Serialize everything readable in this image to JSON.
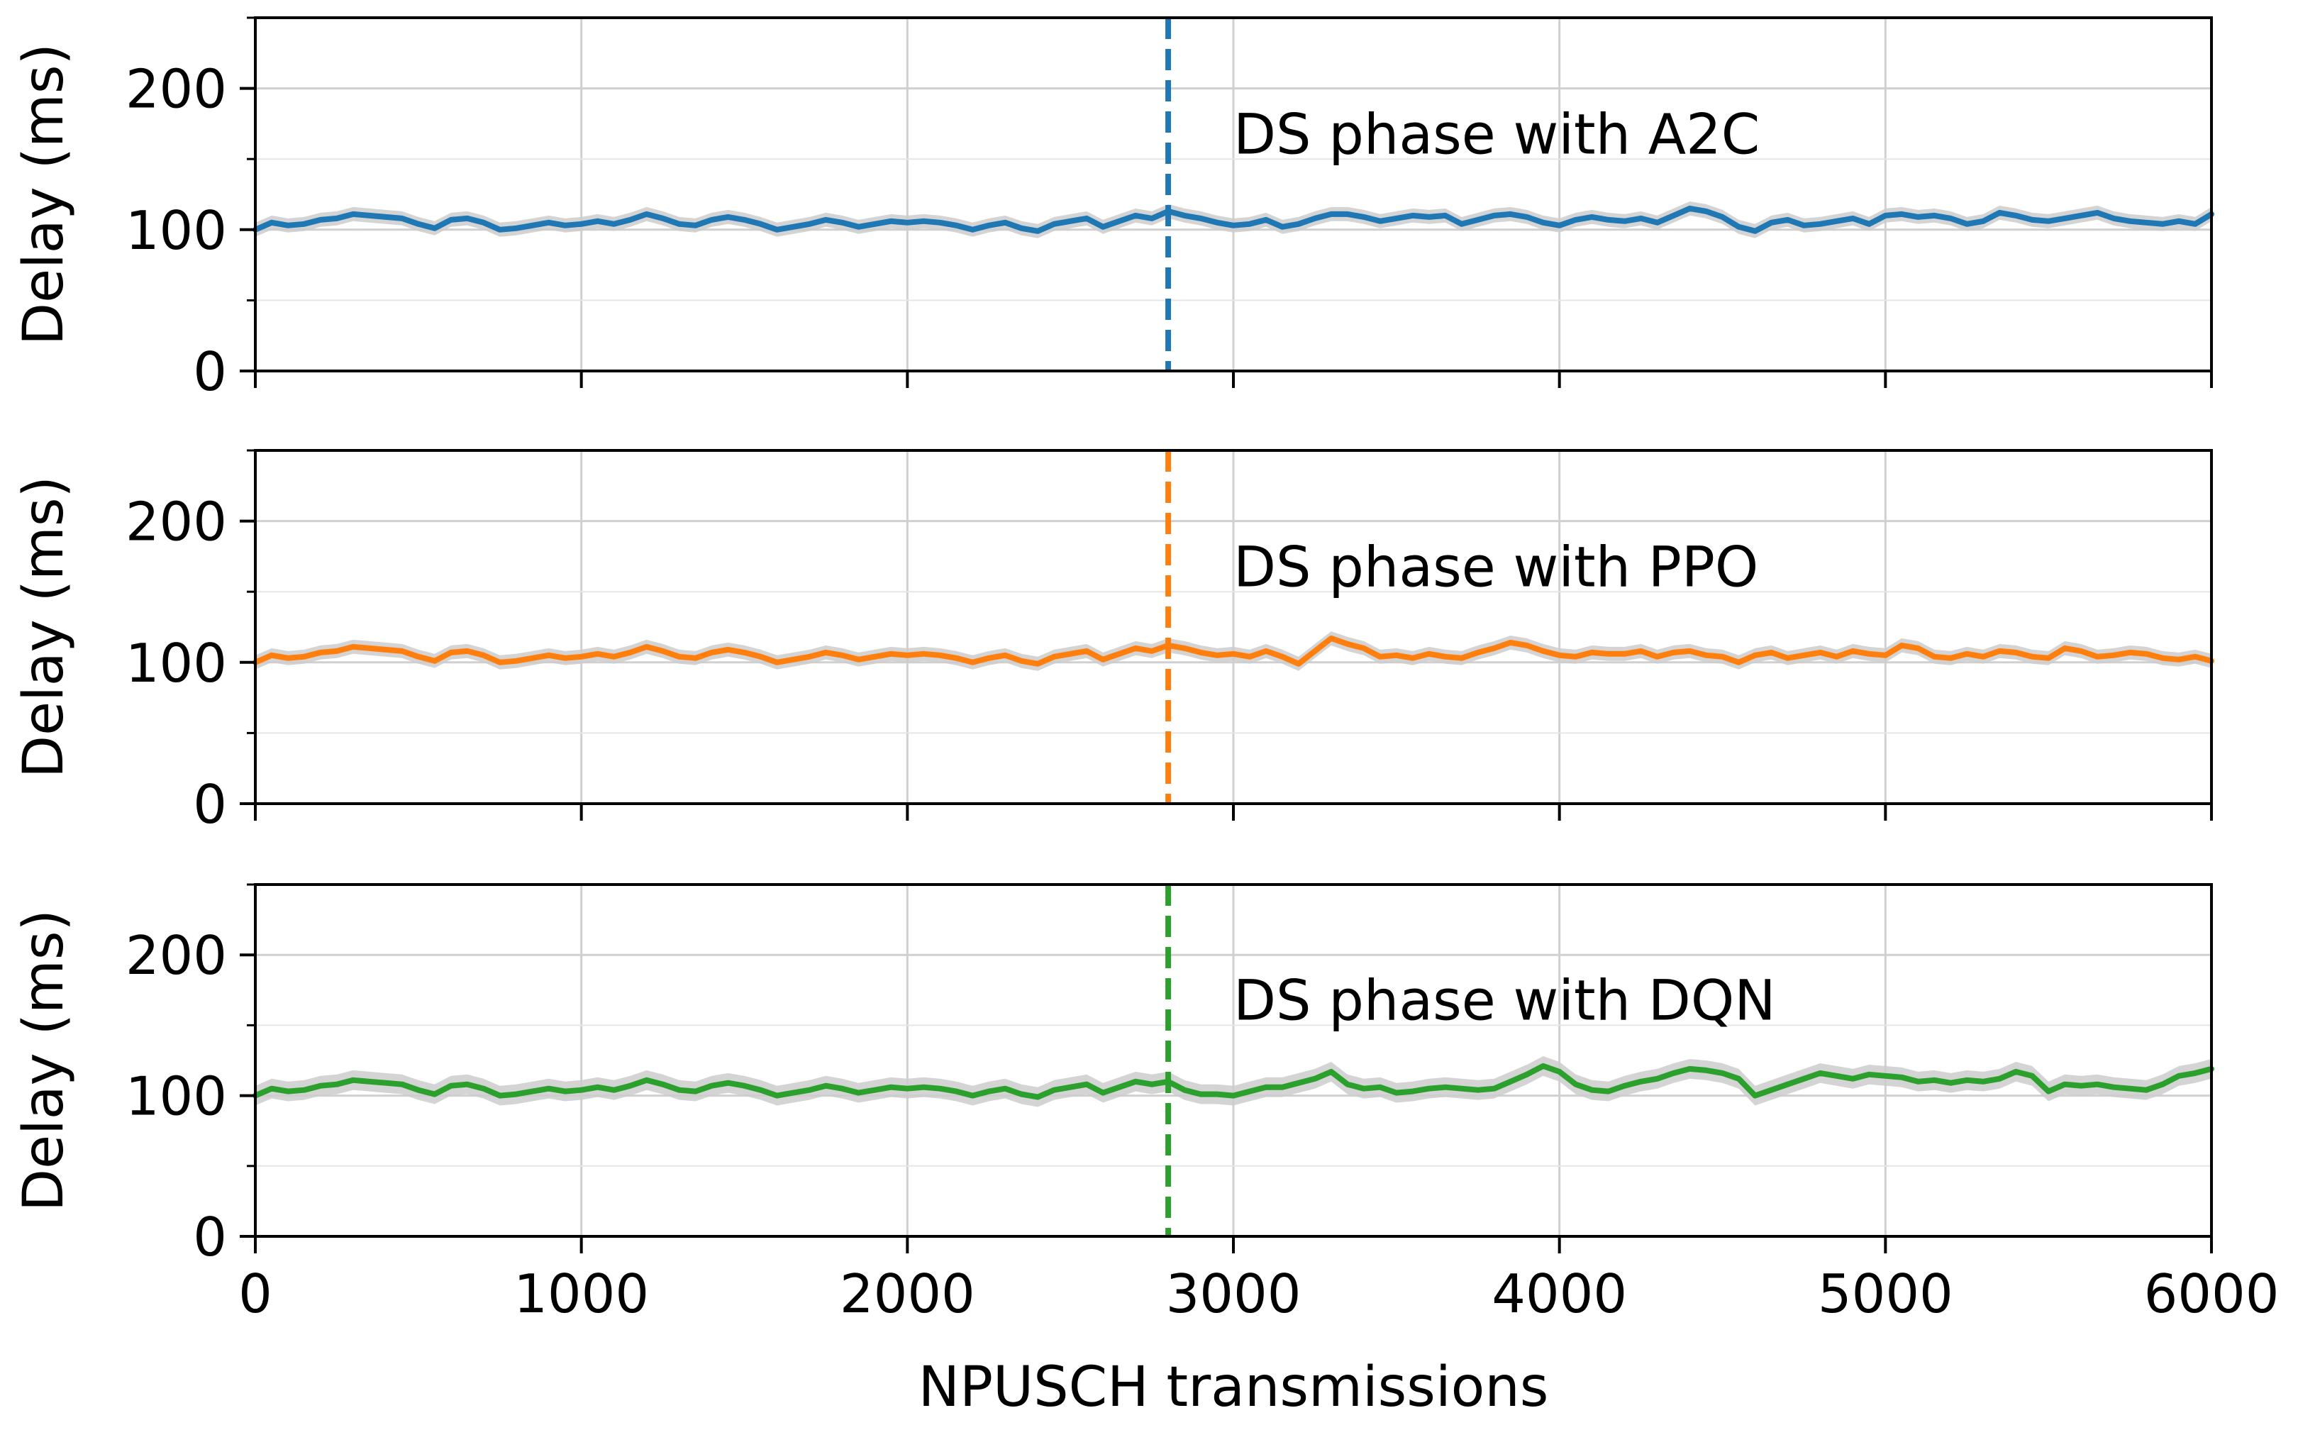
{
  "chart_data": [
    {
      "type": "line",
      "ylabel": "Delay (ms)",
      "xlim": [
        0,
        6000
      ],
      "ylim": [
        0,
        250
      ],
      "yticks": [
        0,
        100,
        200
      ],
      "xticks": [
        0,
        1000,
        2000,
        3000,
        4000,
        5000,
        6000
      ],
      "grid": true,
      "color": "#1f77b4",
      "band_color": "#cccccc",
      "vline": {
        "x": 2800,
        "style": "dashed",
        "color": "#1f77b4"
      },
      "annotation": {
        "text": "DS phase with A2C",
        "x": 3000,
        "y": 165
      },
      "series": [
        {
          "x": [
            0,
            50,
            100,
            150,
            200,
            250,
            300,
            350,
            400,
            450,
            500,
            550,
            600,
            650,
            700,
            750,
            800,
            850,
            900,
            950,
            1000,
            1050,
            1100,
            1150,
            1200,
            1250,
            1300,
            1350,
            1400,
            1450,
            1500,
            1550,
            1600,
            1650,
            1700,
            1750,
            1800,
            1850,
            1900,
            1950,
            2000,
            2050,
            2100,
            2150,
            2200,
            2250,
            2300,
            2350,
            2400,
            2450,
            2500,
            2550,
            2600,
            2650,
            2700,
            2750,
            2800,
            2850,
            2900,
            2950,
            3000,
            3050,
            3100,
            3150,
            3200,
            3250,
            3300,
            3350,
            3400,
            3450,
            3500,
            3550,
            3600,
            3650,
            3700,
            3750,
            3800,
            3850,
            3900,
            3950,
            4000,
            4050,
            4100,
            4150,
            4200,
            4250,
            4300,
            4350,
            4400,
            4450,
            4500,
            4550,
            4600,
            4650,
            4700,
            4750,
            4800,
            4850,
            4900,
            4950,
            5000,
            5050,
            5100,
            5150,
            5200,
            5250,
            5300,
            5350,
            5400,
            5450,
            5500,
            5550,
            5600,
            5650,
            5700,
            5750,
            5800,
            5850,
            5900,
            5950,
            6000
          ],
          "y": [
            100,
            105,
            103,
            104,
            107,
            108,
            111,
            110,
            109,
            108,
            104,
            101,
            107,
            108,
            105,
            100,
            101,
            103,
            105,
            103,
            104,
            106,
            104,
            107,
            111,
            108,
            104,
            103,
            107,
            109,
            107,
            104,
            100,
            102,
            104,
            107,
            105,
            102,
            104,
            106,
            105,
            106,
            105,
            103,
            100,
            103,
            105,
            101,
            99,
            104,
            106,
            108,
            102,
            106,
            110,
            108,
            113,
            110,
            108,
            105,
            103,
            104,
            107,
            102,
            104,
            108,
            111,
            111,
            109,
            106,
            108,
            110,
            109,
            110,
            104,
            107,
            110,
            111,
            109,
            105,
            103,
            107,
            109,
            107,
            106,
            108,
            105,
            110,
            115,
            113,
            109,
            102,
            99,
            105,
            107,
            103,
            104,
            106,
            108,
            104,
            110,
            111,
            109,
            110,
            108,
            104,
            106,
            112,
            110,
            107,
            106,
            108,
            110,
            112,
            108,
            106,
            105,
            104,
            106,
            104,
            111
          ],
          "band": 5
        }
      ]
    },
    {
      "type": "line",
      "ylabel": "Delay (ms)",
      "xlim": [
        0,
        6000
      ],
      "ylim": [
        0,
        250
      ],
      "yticks": [
        0,
        100,
        200
      ],
      "xticks": [
        0,
        1000,
        2000,
        3000,
        4000,
        5000,
        6000
      ],
      "grid": true,
      "color": "#ff7f0e",
      "band_color": "#cccccc",
      "vline": {
        "x": 2800,
        "style": "dashed",
        "color": "#ff7f0e"
      },
      "annotation": {
        "text": "DS phase with PPO",
        "x": 3000,
        "y": 165
      },
      "series": [
        {
          "x": [
            0,
            50,
            100,
            150,
            200,
            250,
            300,
            350,
            400,
            450,
            500,
            550,
            600,
            650,
            700,
            750,
            800,
            850,
            900,
            950,
            1000,
            1050,
            1100,
            1150,
            1200,
            1250,
            1300,
            1350,
            1400,
            1450,
            1500,
            1550,
            1600,
            1650,
            1700,
            1750,
            1800,
            1850,
            1900,
            1950,
            2000,
            2050,
            2100,
            2150,
            2200,
            2250,
            2300,
            2350,
            2400,
            2450,
            2500,
            2550,
            2600,
            2650,
            2700,
            2750,
            2800,
            2850,
            2900,
            2950,
            3000,
            3050,
            3100,
            3150,
            3200,
            3250,
            3300,
            3350,
            3400,
            3450,
            3500,
            3550,
            3600,
            3650,
            3700,
            3750,
            3800,
            3850,
            3900,
            3950,
            4000,
            4050,
            4100,
            4150,
            4200,
            4250,
            4300,
            4350,
            4400,
            4450,
            4500,
            4550,
            4600,
            4650,
            4700,
            4750,
            4800,
            4850,
            4900,
            4950,
            5000,
            5050,
            5100,
            5150,
            5200,
            5250,
            5300,
            5350,
            5400,
            5450,
            5500,
            5550,
            5600,
            5650,
            5700,
            5750,
            5800,
            5850,
            5900,
            5950,
            6000
          ],
          "y": [
            100,
            105,
            103,
            104,
            107,
            108,
            111,
            110,
            109,
            108,
            104,
            101,
            107,
            108,
            105,
            100,
            101,
            103,
            105,
            103,
            104,
            106,
            104,
            107,
            111,
            108,
            104,
            103,
            107,
            109,
            107,
            104,
            100,
            102,
            104,
            107,
            105,
            102,
            104,
            106,
            105,
            106,
            105,
            103,
            100,
            103,
            105,
            101,
            99,
            104,
            106,
            108,
            102,
            106,
            110,
            108,
            112,
            110,
            107,
            105,
            106,
            104,
            108,
            104,
            99,
            108,
            117,
            113,
            110,
            104,
            105,
            103,
            106,
            104,
            103,
            107,
            110,
            114,
            112,
            108,
            105,
            104,
            107,
            106,
            106,
            108,
            104,
            107,
            108,
            105,
            104,
            100,
            105,
            107,
            103,
            105,
            107,
            104,
            108,
            106,
            105,
            112,
            110,
            104,
            103,
            106,
            104,
            108,
            107,
            104,
            103,
            110,
            108,
            104,
            105,
            107,
            106,
            103,
            102,
            104,
            101
          ],
          "band": 5
        }
      ]
    },
    {
      "type": "line",
      "ylabel": "Delay (ms)",
      "xlim": [
        0,
        6000
      ],
      "ylim": [
        0,
        250
      ],
      "yticks": [
        0,
        100,
        200
      ],
      "xticks": [
        0,
        1000,
        2000,
        3000,
        4000,
        5000,
        6000
      ],
      "grid": true,
      "color": "#2ca02c",
      "band_color": "#cccccc",
      "vline": {
        "x": 2800,
        "style": "dashed",
        "color": "#2ca02c"
      },
      "annotation": {
        "text": "DS phase with DQN",
        "x": 3000,
        "y": 165
      },
      "series": [
        {
          "x": [
            0,
            50,
            100,
            150,
            200,
            250,
            300,
            350,
            400,
            450,
            500,
            550,
            600,
            650,
            700,
            750,
            800,
            850,
            900,
            950,
            1000,
            1050,
            1100,
            1150,
            1200,
            1250,
            1300,
            1350,
            1400,
            1450,
            1500,
            1550,
            1600,
            1650,
            1700,
            1750,
            1800,
            1850,
            1900,
            1950,
            2000,
            2050,
            2100,
            2150,
            2200,
            2250,
            2300,
            2350,
            2400,
            2450,
            2500,
            2550,
            2600,
            2650,
            2700,
            2750,
            2800,
            2850,
            2900,
            2950,
            3000,
            3050,
            3100,
            3150,
            3200,
            3250,
            3300,
            3350,
            3400,
            3450,
            3500,
            3550,
            3600,
            3650,
            3700,
            3750,
            3800,
            3850,
            3900,
            3950,
            4000,
            4050,
            4100,
            4150,
            4200,
            4250,
            4300,
            4350,
            4400,
            4450,
            4500,
            4550,
            4600,
            4650,
            4700,
            4750,
            4800,
            4850,
            4900,
            4950,
            5000,
            5050,
            5100,
            5150,
            5200,
            5250,
            5300,
            5350,
            5400,
            5450,
            5500,
            5550,
            5600,
            5650,
            5700,
            5750,
            5800,
            5850,
            5900,
            5950,
            6000
          ],
          "y": [
            100,
            105,
            103,
            104,
            107,
            108,
            111,
            110,
            109,
            108,
            104,
            101,
            107,
            108,
            105,
            100,
            101,
            103,
            105,
            103,
            104,
            106,
            104,
            107,
            111,
            108,
            104,
            103,
            107,
            109,
            107,
            104,
            100,
            102,
            104,
            107,
            105,
            102,
            104,
            106,
            105,
            106,
            105,
            103,
            100,
            103,
            105,
            101,
            99,
            104,
            106,
            108,
            102,
            106,
            110,
            108,
            110,
            104,
            101,
            101,
            100,
            103,
            106,
            106,
            109,
            112,
            117,
            108,
            105,
            106,
            102,
            103,
            105,
            106,
            105,
            104,
            105,
            110,
            115,
            121,
            117,
            108,
            104,
            103,
            107,
            110,
            112,
            116,
            119,
            118,
            116,
            112,
            100,
            104,
            108,
            112,
            116,
            114,
            112,
            115,
            114,
            113,
            110,
            111,
            109,
            111,
            110,
            112,
            117,
            114,
            103,
            108,
            107,
            108,
            106,
            105,
            104,
            108,
            114,
            116,
            119
          ],
          "band": 7
        }
      ]
    }
  ],
  "xlabel": "NPUSCH transmissions"
}
